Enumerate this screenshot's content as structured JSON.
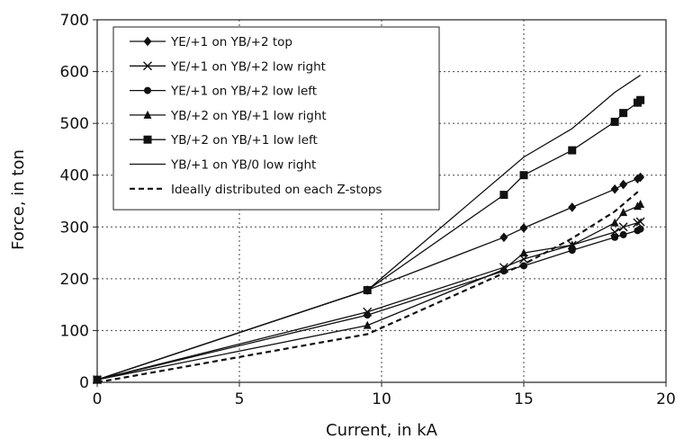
{
  "chart_data": {
    "type": "line",
    "title": "",
    "xlabel": "Current, in kA",
    "ylabel": "Force, in ton",
    "xlim": [
      0,
      20
    ],
    "ylim": [
      0,
      700
    ],
    "xticks": [
      0,
      5,
      10,
      15,
      20
    ],
    "yticks": [
      0,
      100,
      200,
      300,
      400,
      500,
      600,
      700
    ],
    "grid": "dotted",
    "legend_position": "top-left",
    "series": [
      {
        "name": "YE/+1 on YB/+2 top",
        "marker": "diamond",
        "dash": "solid",
        "x": [
          0,
          9.5,
          14.3,
          15.0,
          16.7,
          18.2,
          18.5,
          19.0,
          19.1
        ],
        "y": [
          5,
          178,
          280,
          298,
          338,
          373,
          382,
          393,
          396
        ]
      },
      {
        "name": "YE/+1 on YB/+2 low right",
        "marker": "x",
        "dash": "solid",
        "x": [
          0,
          9.5,
          14.3,
          15.0,
          16.7,
          18.2,
          18.5,
          19.0,
          19.1
        ],
        "y": [
          5,
          136,
          222,
          238,
          265,
          290,
          300,
          308,
          310
        ]
      },
      {
        "name": "YE/+1 on YB/+2 low left",
        "marker": "circle",
        "dash": "solid",
        "x": [
          0,
          9.5,
          14.3,
          15.0,
          16.7,
          18.2,
          18.5,
          19.0,
          19.1
        ],
        "y": [
          5,
          130,
          215,
          225,
          255,
          280,
          285,
          293,
          296
        ]
      },
      {
        "name": "YB/+2 on YB/+1 low right",
        "marker": "triangle",
        "dash": "solid",
        "x": [
          0,
          9.5,
          14.3,
          15.0,
          16.7,
          18.2,
          18.5,
          19.0,
          19.1
        ],
        "y": [
          5,
          110,
          218,
          250,
          265,
          308,
          328,
          340,
          344
        ]
      },
      {
        "name": "YB/+2 on YB/+1  low left",
        "marker": "square",
        "dash": "solid",
        "x": [
          0,
          9.5,
          14.3,
          15.0,
          16.7,
          18.2,
          18.5,
          19.0,
          19.1
        ],
        "y": [
          5,
          178,
          362,
          400,
          448,
          503,
          520,
          540,
          545
        ]
      },
      {
        "name": "YB/+1 on YB/0 low right",
        "marker": "none",
        "dash": "solid",
        "x": [
          0,
          9.5,
          15.0,
          16.7,
          18.2,
          19.1
        ],
        "y": [
          5,
          178,
          435,
          490,
          560,
          593
        ]
      },
      {
        "name": "Ideally distributed on each Z-stops",
        "marker": "none",
        "dash": "dashed",
        "x": [
          0,
          9.5,
          15.0,
          16.7,
          18.2,
          19.1
        ],
        "y": [
          0,
          93,
          228,
          278,
          330,
          372
        ]
      }
    ]
  }
}
